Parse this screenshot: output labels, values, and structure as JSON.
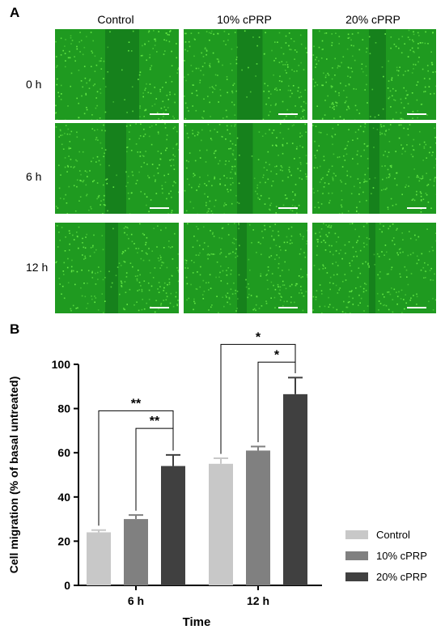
{
  "panel_a": {
    "letter": "A",
    "columns": [
      "Control",
      "10% cPRP",
      "20% cPRP"
    ],
    "rows": [
      "0 h",
      "6 h",
      "12 h"
    ],
    "image_colors": {
      "base": "#1f9a20",
      "speck": "#6cf04a",
      "dark": "#0e6e1a",
      "scale_bar": "#ffffff"
    }
  },
  "panel_b": {
    "letter": "B"
  },
  "chart_data": {
    "type": "bar",
    "title": "",
    "xlabel": "Time",
    "ylabel": "Cell migration (% of basal untreated)",
    "ylim": [
      0,
      100
    ],
    "yticks": [
      0,
      20,
      40,
      60,
      80,
      100
    ],
    "categories": [
      "6 h",
      "12 h"
    ],
    "legend_position": "right",
    "grid": false,
    "series": [
      {
        "name": "Control",
        "color": "#c8c8c8",
        "values": [
          24,
          55
        ],
        "errors": [
          1,
          2.5
        ]
      },
      {
        "name": "10% cPRP",
        "color": "#808080",
        "values": [
          30,
          61
        ],
        "errors": [
          1.8,
          1.8
        ]
      },
      {
        "name": "20% cPRP",
        "color": "#404040",
        "values": [
          54,
          86.5
        ],
        "errors": [
          5,
          7.5
        ]
      }
    ],
    "significance": [
      {
        "group": 0,
        "from_series": 0,
        "to_series": 2,
        "label": "**",
        "level": 79
      },
      {
        "group": 0,
        "from_series": 1,
        "to_series": 2,
        "label": "**",
        "level": 71
      },
      {
        "group": 1,
        "from_series": 0,
        "to_series": 2,
        "label": "*",
        "level": 109
      },
      {
        "group": 1,
        "from_series": 1,
        "to_series": 2,
        "label": "*",
        "level": 101
      }
    ]
  }
}
